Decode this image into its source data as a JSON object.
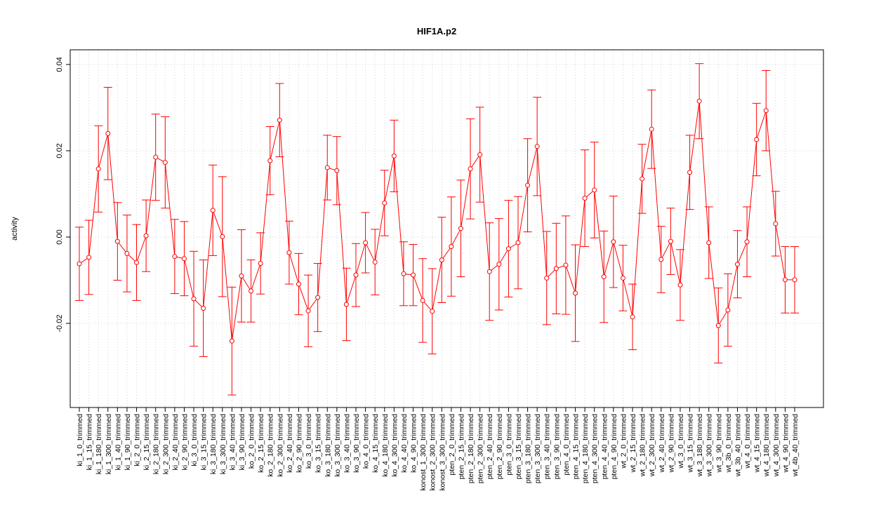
{
  "chart_data": {
    "type": "line",
    "title": "HIF1A.p2",
    "y_label": "activity",
    "categories": [
      "ki_1_0_trimmed",
      "ki_1_15_trimmed",
      "ki_1_180_trimmed",
      "ki_1_300_trimmed",
      "ki_1_40_trimmed",
      "ki_1_90_trimmed",
      "ki_2_0_trimmed",
      "ki_2_15_trimmed",
      "ki_2_180_trimmed",
      "ki_2_300_trimmed",
      "ki_2_40_trimmed",
      "ki_2_90_trimmed",
      "ki_3_0_trimmed",
      "ki_3_15_trimmed",
      "ki_3_180_trimmed",
      "ki_3_300_trimmed",
      "ki_3_40_trimmed",
      "ki_3_90_trimmed",
      "ko_2_0_trimmed",
      "ko_2_15_trimmed",
      "ko_2_180_trimmed",
      "ko_2_300_trimmed",
      "ko_2_40_trimmed",
      "ko_2_90_trimmed",
      "ko_3_0_trimmed",
      "ko_3_15_trimmed",
      "ko_3_180_trimmed",
      "ko_3_300_trimmed",
      "ko_3_40_trimmed",
      "ko_3_90_trimmed",
      "ko_4_0_trimmed",
      "ko_4_15_trimmed",
      "ko_4_180_trimmed",
      "ko_4_300_trimmed",
      "ko_4_40_trimmed",
      "ko_4_90_trimmed",
      "konost_1_300_trimmed",
      "konost_2_300_trimmed",
      "konost_3_300_trimmed",
      "pten_2_0_trimmed",
      "pten_2_15_trimmed",
      "pten_2_180_trimmed",
      "pten_2_300_trimmed",
      "pten_2_40_trimmed",
      "pten_2_90_trimmed",
      "pten_3_0_trimmed",
      "pten_3_15_trimmed",
      "pten_3_180_trimmed",
      "pten_3_300_trimmed",
      "pten_3_40_trimmed",
      "pten_3_90_trimmed",
      "pten_4_0_trimmed",
      "pten_4_15_trimmed",
      "pten_4_180_trimmed",
      "pten_4_300_trimmed",
      "pten_4_40_trimmed",
      "pten_4_90_trimmed",
      "wt_2_0_trimmed",
      "wt_2_15_trimmed",
      "wt_2_180_trimmed",
      "wt_2_300_trimmed",
      "wt_2_40_trimmed",
      "wt_2_90_trimmed",
      "wt_3_0_trimmed",
      "wt_3_15_trimmed",
      "wt_3_180_trimmed",
      "wt_3_300_trimmed",
      "wt_3_90_trimmed",
      "wt_3b_0_trimmed",
      "wt_3b_40_trimmed",
      "wt_4_0_trimmed",
      "wt_4_15_trimmed",
      "wt_4_180_trimmed",
      "wt_4_300_trimmed",
      "wt_4_90_trimmed",
      "wt_4b_40_trimmed"
    ],
    "series": [
      {
        "color": "#ff0000",
        "values": [
          -0.0062,
          -0.0047,
          0.0158,
          0.024,
          -0.001,
          -0.0038,
          -0.0059,
          0.0003,
          0.0185,
          0.0173,
          -0.0045,
          -0.005,
          -0.0143,
          -0.0165,
          0.0062,
          0.0001,
          -0.0241,
          -0.009,
          -0.0125,
          -0.0061,
          0.0177,
          0.0271,
          -0.0036,
          -0.0109,
          -0.0171,
          -0.014,
          0.0161,
          0.0154,
          -0.0156,
          -0.0088,
          -0.0013,
          -0.0058,
          0.0079,
          0.0188,
          -0.0085,
          -0.0088,
          -0.0147,
          -0.0172,
          -0.0053,
          -0.0022,
          0.002,
          0.0158,
          0.0191,
          -0.008,
          -0.0063,
          -0.0027,
          -0.0013,
          0.012,
          0.021,
          -0.0095,
          -0.0073,
          -0.0065,
          -0.013,
          0.009,
          0.0109,
          -0.0092,
          -0.0011,
          -0.0095,
          -0.0185,
          0.0135,
          0.025,
          -0.0052,
          -0.001,
          -0.0111,
          0.015,
          0.0315,
          -0.0013,
          -0.0205,
          -0.0169,
          -0.0063,
          -0.0011,
          0.0226,
          0.0293,
          0.0031,
          -0.0099,
          -0.0099
        ],
        "errors": [
          0.0085,
          0.0086,
          0.01,
          0.0107,
          0.009,
          0.0089,
          0.0088,
          0.0083,
          0.01,
          0.0106,
          0.0086,
          0.0086,
          0.011,
          0.0112,
          0.0105,
          0.0139,
          0.0125,
          0.0107,
          0.0072,
          0.0071,
          0.0079,
          0.0085,
          0.0073,
          0.0071,
          0.0083,
          0.0079,
          0.0075,
          0.0079,
          0.0084,
          0.0073,
          0.007,
          0.0076,
          0.0076,
          0.0083,
          0.0074,
          0.0071,
          0.0097,
          0.0099,
          0.0099,
          0.0115,
          0.0112,
          0.0116,
          0.011,
          0.0113,
          0.0106,
          0.0112,
          0.0107,
          0.0108,
          0.0114,
          0.0108,
          0.0105,
          0.0114,
          0.0112,
          0.0112,
          0.0111,
          0.0106,
          0.0106,
          0.0076,
          0.0076,
          0.008,
          0.0091,
          0.0077,
          0.0077,
          0.0082,
          0.0086,
          0.0087,
          0.0083,
          0.0087,
          0.0084,
          0.0078,
          0.0081,
          0.0084,
          0.0093,
          0.0075,
          0.0077,
          0.0077
        ]
      }
    ],
    "ylim": [
      -0.0395,
      0.0434
    ],
    "yticks": [
      -0.02,
      {
        "value": 0,
        "label": "0.00"
      },
      0.02,
      0.04
    ],
    "grid": true
  }
}
